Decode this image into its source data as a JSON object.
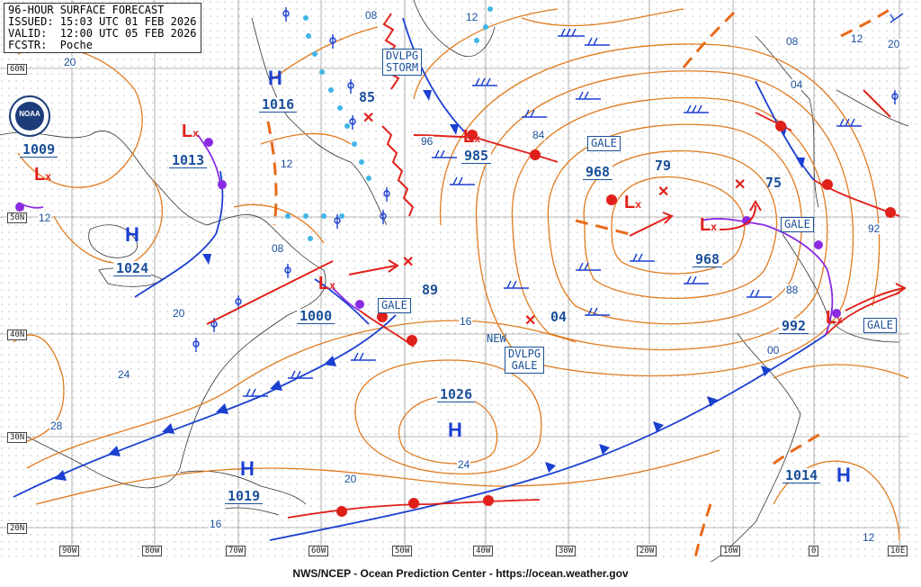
{
  "header": {
    "line1": "96-HOUR SURFACE FORECAST",
    "line2": "ISSUED: 15:03 UTC 01 FEB 2026",
    "line3": "VALID:  12:00 UTC 05 FEB 2026",
    "line4": "FCSTR:  Poche"
  },
  "logo": {
    "text": "NOAA"
  },
  "footer": "NWS/NCEP - Ocean Prediction Center - https://ocean.weather.gov",
  "lon_labels": [
    "90W",
    "80W",
    "70W",
    "60W",
    "50W",
    "40W",
    "30W",
    "20W",
    "10W",
    "0",
    "10E"
  ],
  "lat_labels": [
    "60N",
    "50N",
    "40N",
    "30N",
    "20N"
  ],
  "highs": [
    {
      "symbol": "H",
      "pressure": "1016"
    },
    {
      "symbol": "H",
      "pressure": "1024"
    },
    {
      "symbol": "H",
      "pressure": "1026"
    },
    {
      "symbol": "H",
      "pressure": "1019"
    },
    {
      "symbol": "H",
      "pressure": "1014"
    }
  ],
  "lows": [
    {
      "pressure": "1009"
    },
    {
      "pressure": "1013"
    },
    {
      "pressure": "1000"
    },
    {
      "pressure": "985"
    },
    {
      "pressure": "968"
    },
    {
      "pressure": "968"
    },
    {
      "pressure": "992"
    }
  ],
  "forecast_centers": [
    "85",
    "79",
    "75",
    "89",
    "04"
  ],
  "warnings": {
    "storm": [
      "DVLPG",
      "STORM"
    ],
    "gale_labels": [
      "GALE",
      "GALE",
      "GALE",
      "GALE"
    ],
    "new_gale": {
      "prefix": "NEW",
      "lines": [
        "DVLPG",
        "GALE"
      ]
    }
  },
  "isobar_labels": [
    "20",
    "08",
    "12",
    "08",
    "12",
    "20",
    "04",
    "96",
    "84",
    "12",
    "08",
    "20",
    "24",
    "28",
    "16",
    "20",
    "24",
    "16",
    "00",
    "88",
    "92",
    "12"
  ]
}
